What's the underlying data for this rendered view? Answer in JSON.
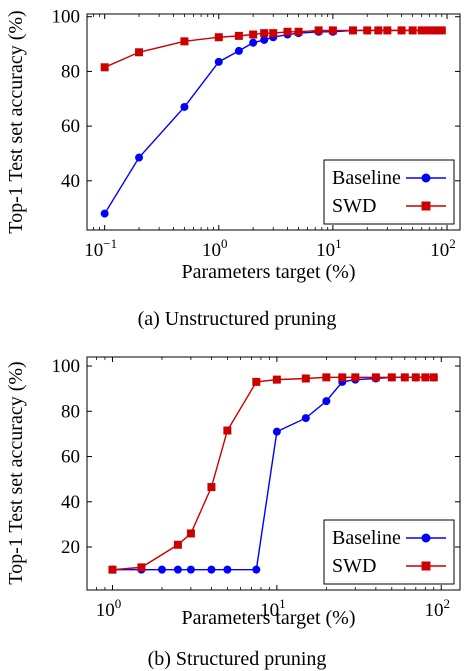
{
  "chart_data": [
    {
      "type": "line",
      "x_scale": "log",
      "xlabel": "Parameters target (%)",
      "ylabel": "Top-1 Test set accuracy (%)",
      "xlim": [
        0.07,
        130
      ],
      "ylim": [
        22,
        101
      ],
      "x_ticks": [
        {
          "value": 0.1,
          "base": "10",
          "exp": "−1"
        },
        {
          "value": 1,
          "base": "10",
          "exp": "0"
        },
        {
          "value": 10,
          "base": "10",
          "exp": "1"
        },
        {
          "value": 100,
          "base": "10",
          "exp": "2"
        }
      ],
      "y_ticks": [
        40,
        60,
        80,
        100
      ],
      "legend_position": "bottom-right",
      "caption": "(a) Unstructured pruning",
      "series": [
        {
          "name": "Baseline",
          "color": "#0000ff",
          "marker": "circle",
          "x": [
            0.1,
            0.2,
            0.5,
            1,
            1.5,
            2,
            2.5,
            3,
            4,
            5,
            7.5,
            10,
            15,
            20,
            25,
            30,
            40,
            50,
            60,
            70,
            80,
            90
          ],
          "y": [
            28,
            48.5,
            67,
            83.5,
            87.5,
            90.5,
            91.5,
            92.5,
            93.5,
            94,
            94.5,
            94.5,
            95,
            95,
            95,
            95,
            95,
            95,
            95,
            95,
            95,
            95
          ]
        },
        {
          "name": "SWD",
          "color": "#cc0000",
          "marker": "square",
          "x": [
            0.1,
            0.2,
            0.5,
            1,
            1.5,
            2,
            2.5,
            3,
            4,
            5,
            7.5,
            10,
            15,
            20,
            25,
            30,
            40,
            50,
            60,
            70,
            80,
            90
          ],
          "y": [
            81.5,
            87,
            91,
            92.5,
            93,
            93.5,
            94,
            94,
            94.5,
            94.5,
            95,
            95,
            95,
            95,
            95,
            95,
            95,
            95,
            95,
            95,
            95,
            95
          ]
        }
      ]
    },
    {
      "type": "line",
      "x_scale": "log",
      "xlabel": "Parameters target (%)",
      "ylabel": "Top-1 Test set accuracy (%)",
      "xlim": [
        0.7,
        130
      ],
      "ylim": [
        1,
        104
      ],
      "x_ticks": [
        {
          "value": 1,
          "base": "10",
          "exp": "0"
        },
        {
          "value": 10,
          "base": "10",
          "exp": "1"
        },
        {
          "value": 100,
          "base": "10",
          "exp": "2"
        }
      ],
      "y_ticks": [
        20,
        40,
        60,
        80,
        100
      ],
      "legend_position": "bottom-right",
      "caption": "(b) Structured pruning",
      "series": [
        {
          "name": "Baseline",
          "color": "#0000ff",
          "marker": "circle",
          "x": [
            1,
            1.5,
            2,
            2.5,
            3,
            4,
            5,
            7.5,
            10,
            15,
            20,
            25,
            30,
            40,
            50,
            60,
            70,
            80,
            90
          ],
          "y": [
            10,
            10,
            10,
            10,
            10,
            10,
            10,
            10,
            71,
            77,
            84.5,
            93,
            94,
            94.5,
            95,
            95,
            95,
            95,
            95
          ]
        },
        {
          "name": "SWD",
          "color": "#cc0000",
          "marker": "square",
          "x": [
            1,
            1.5,
            2.5,
            3,
            4,
            5,
            7.5,
            10,
            15,
            20,
            25,
            30,
            40,
            50,
            60,
            70,
            80,
            90
          ],
          "y": [
            10,
            11,
            21,
            26,
            46.5,
            71.5,
            93,
            94,
            94.5,
            95,
            95,
            95,
            95,
            95,
            95,
            95,
            95,
            95
          ]
        }
      ]
    }
  ]
}
